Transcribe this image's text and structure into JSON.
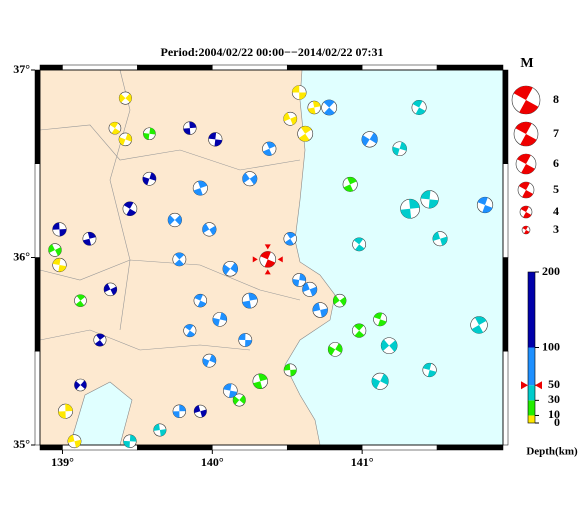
{
  "title": "Period:2004/02/22 00:00−−2014/02/22 07:31",
  "xlim": [
    138.85,
    141.94
  ],
  "ylim": [
    35,
    37
  ],
  "lon_ticks": [
    {
      "value": 139,
      "label": "139°"
    },
    {
      "value": 140,
      "label": "140°"
    },
    {
      "value": 141,
      "label": "141°"
    }
  ],
  "lat_ticks": [
    {
      "value": 37,
      "label": "37°"
    },
    {
      "value": 36,
      "label": "36°"
    },
    {
      "value": 35,
      "label": "35°"
    }
  ],
  "magnitude_legend": {
    "title": "M",
    "values": [
      8,
      7,
      6,
      5,
      4,
      3
    ],
    "color": "#ee0000"
  },
  "depth_scale": {
    "label": "Depth(km)",
    "clim": [
      0,
      200
    ],
    "ticks": [
      0,
      10,
      30,
      50,
      100,
      200
    ],
    "colors": [
      "#ffe800",
      "#22ee00",
      "#00cccc",
      "#1e90ff",
      "#0000aa"
    ]
  },
  "latest_event": {
    "lon": 140.37,
    "lat": 35.99,
    "depth": 50,
    "mag": 5,
    "color": "#ee0000"
  },
  "events": {
    "lon": [
      140.58,
      140.68,
      140.52,
      140.62,
      139.42,
      139.35,
      139.42,
      138.98,
      139.02,
      139.08,
      140.92,
      140.85,
      140.98,
      140.82,
      141.12,
      139.58,
      140.52,
      140.32,
      138.95,
      139.12,
      140.18,
      141.38,
      141.25,
      141.45,
      141.32,
      141.52,
      141.78,
      141.18,
      140.98,
      141.12,
      141.45,
      139.45,
      139.65,
      139.92,
      139.98,
      139.78,
      140.12,
      139.92,
      140.05,
      140.22,
      140.25,
      140.65,
      140.52,
      139.75,
      139.85,
      139.98,
      140.12,
      139.78,
      140.72,
      140.38,
      140.25,
      140.78,
      141.05,
      141.82,
      140.58,
      138.98,
      139.18,
      139.32,
      139.25,
      139.12,
      139.45,
      139.58,
      140.02,
      139.85,
      139.92
    ],
    "lat": [
      36.88,
      36.8,
      36.74,
      36.66,
      36.85,
      36.69,
      36.63,
      35.96,
      35.18,
      35.02,
      36.39,
      35.77,
      35.61,
      35.51,
      35.67,
      36.66,
      35.4,
      35.34,
      36.04,
      35.77,
      35.24,
      36.8,
      36.58,
      36.31,
      36.26,
      36.1,
      35.64,
      35.53,
      36.07,
      35.34,
      35.4,
      35.02,
      35.08,
      36.37,
      36.15,
      35.99,
      35.94,
      35.77,
      35.67,
      35.56,
      35.77,
      35.83,
      36.1,
      36.2,
      35.61,
      35.45,
      35.29,
      35.18,
      35.72,
      36.58,
      36.42,
      36.8,
      36.63,
      36.28,
      35.88,
      36.15,
      36.1,
      35.83,
      35.56,
      35.32,
      36.26,
      36.42,
      36.63,
      36.69,
      35.18
    ],
    "depth": [
      5,
      6,
      4,
      7,
      8,
      6,
      5,
      9,
      7,
      6,
      20,
      22,
      18,
      25,
      24,
      19,
      21,
      23,
      20,
      26,
      17,
      40,
      42,
      38,
      45,
      41,
      44,
      39,
      36,
      43,
      40,
      37,
      41,
      70,
      65,
      75,
      80,
      68,
      72,
      85,
      66,
      60,
      78,
      90,
      70,
      74,
      62,
      81,
      58,
      69,
      73,
      64,
      71,
      88,
      55,
      120,
      130,
      115,
      140,
      125,
      110,
      135,
      118,
      150,
      122
    ],
    "mag": [
      4.5,
      4.2,
      4.3,
      4.8,
      4.1,
      4.0,
      4.2,
      4.4,
      4.6,
      4.3,
      4.6,
      4.2,
      4.4,
      4.5,
      4.3,
      4.0,
      4.1,
      4.7,
      4.2,
      4.0,
      4.1,
      4.6,
      4.5,
      5.4,
      5.8,
      4.6,
      5.2,
      5.0,
      4.3,
      5.1,
      4.4,
      4.2,
      4.1,
      4.6,
      4.4,
      4.3,
      4.7,
      4.2,
      4.5,
      4.3,
      4.8,
      4.6,
      4.2,
      4.4,
      4.1,
      4.3,
      4.5,
      4.2,
      4.7,
      4.4,
      4.6,
      4.8,
      4.9,
      4.9,
      4.3,
      4.4,
      4.3,
      4.2,
      4.1,
      4.0,
      4.5,
      4.3,
      4.4,
      4.2,
      4.1
    ]
  }
}
